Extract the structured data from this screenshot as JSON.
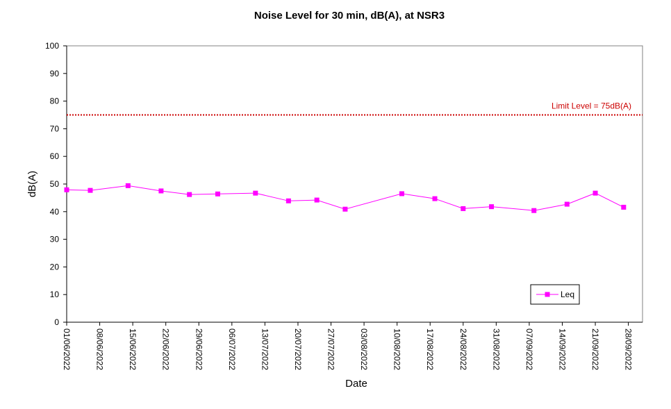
{
  "chart_data": {
    "type": "line",
    "title": "Noise Level for 30 min, dB(A), at NSR3",
    "xlabel": "Date",
    "ylabel": "dB(A)",
    "ylim": [
      0,
      100
    ],
    "yticks": [
      0,
      10,
      20,
      30,
      40,
      50,
      60,
      70,
      80,
      90,
      100
    ],
    "xticks": [
      "01/06/2022",
      "08/06/2022",
      "15/06/2022",
      "22/06/2022",
      "29/06/2022",
      "06/07/2022",
      "13/07/2022",
      "20/07/2022",
      "27/07/2022",
      "03/08/2022",
      "10/08/2022",
      "17/08/2022",
      "24/08/2022",
      "31/08/2022",
      "07/09/2022",
      "14/09/2022",
      "21/09/2022",
      "28/09/2022"
    ],
    "xlim": [
      "01/06/2022",
      "01/10/2022"
    ],
    "grid": false,
    "legend_position": "bottom-right",
    "series": [
      {
        "name": "Leq",
        "color": "#ff00ff",
        "marker": "square",
        "points": [
          {
            "x": "01/06/2022",
            "y": 47.9
          },
          {
            "x": "06/06/2022",
            "y": 47.7
          },
          {
            "x": "14/06/2022",
            "y": 49.4
          },
          {
            "x": "21/06/2022",
            "y": 47.5
          },
          {
            "x": "27/06/2022",
            "y": 46.2
          },
          {
            "x": "03/07/2022",
            "y": 46.4
          },
          {
            "x": "11/07/2022",
            "y": 46.7
          },
          {
            "x": "18/07/2022",
            "y": 43.9
          },
          {
            "x": "24/07/2022",
            "y": 44.2
          },
          {
            "x": "30/07/2022",
            "y": 40.9
          },
          {
            "x": "11/08/2022",
            "y": 46.5
          },
          {
            "x": "18/08/2022",
            "y": 44.7
          },
          {
            "x": "24/08/2022",
            "y": 41.1
          },
          {
            "x": "30/08/2022",
            "y": 41.8
          },
          {
            "x": "08/09/2022",
            "y": 40.4
          },
          {
            "x": "15/09/2022",
            "y": 42.7
          },
          {
            "x": "21/09/2022",
            "y": 46.7
          },
          {
            "x": "27/09/2022",
            "y": 41.6
          }
        ]
      }
    ],
    "limit": {
      "value": 75,
      "label": "Limit Level  = 75dB(A)",
      "color": "#cc0000"
    }
  }
}
